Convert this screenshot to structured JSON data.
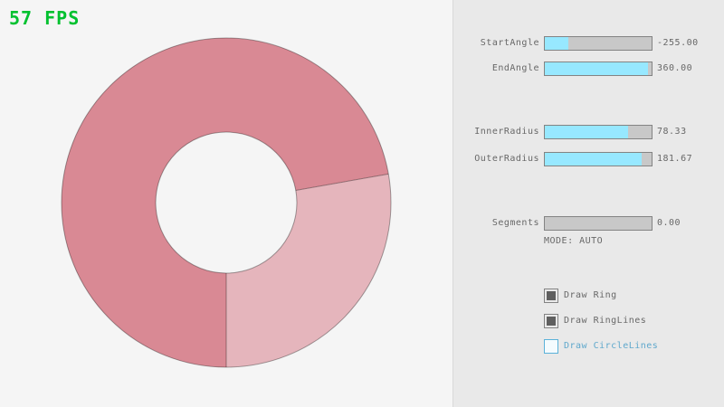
{
  "app": {
    "fps_label": "57 FPS"
  },
  "colors": {
    "fps_green": "#00c12f",
    "canvas_bg": "#f5f5f5",
    "panel_bg": "#e9e9e9",
    "slider_fill": "#97e8ff",
    "slider_track": "#c8c8c8",
    "control_border": "#838383",
    "text_gray": "#686868",
    "accent_blue_border": "#5bb2d9",
    "accent_blue_text": "#5fa8cc"
  },
  "ring": {
    "color_dark": "#d98994",
    "color_light": "#e5b5bc",
    "outline_color": "rgba(0,0,0,0.35)"
  },
  "panel": {
    "sliders": [
      {
        "label": "StartAngle",
        "value": "-255.00",
        "fill": 0.22
      },
      {
        "label": "EndAngle",
        "value": "360.00",
        "fill": 0.97
      },
      {
        "label": "InnerRadius",
        "value": "78.33",
        "fill": 0.78
      },
      {
        "label": "OuterRadius",
        "value": "181.67",
        "fill": 0.91
      },
      {
        "label": "Segments",
        "value": "0.00",
        "fill": 0
      }
    ],
    "mode_label": "MODE: AUTO",
    "checkboxes": [
      {
        "label": "Draw Ring",
        "checked": true
      },
      {
        "label": "Draw RingLines",
        "checked": true
      },
      {
        "label": "Draw CircleLines",
        "checked": false
      }
    ]
  }
}
